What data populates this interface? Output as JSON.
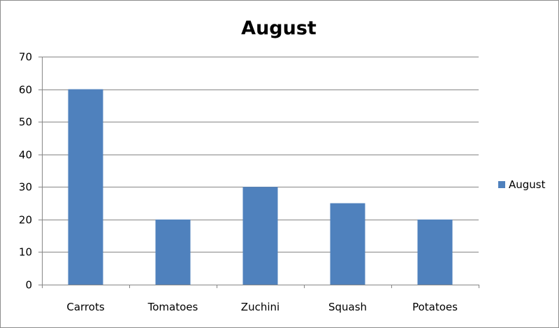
{
  "chart_data": {
    "type": "bar",
    "title": "August",
    "categories": [
      "Carrots",
      "Tomatoes",
      "Zuchini",
      "Squash",
      "Potatoes"
    ],
    "series": [
      {
        "name": "August",
        "values": [
          60,
          20,
          30,
          25,
          20
        ],
        "color": "#4f81bd"
      }
    ],
    "ylim": [
      0,
      70
    ],
    "yticks": [
      "0",
      "10",
      "20",
      "30",
      "40",
      "50",
      "60",
      "70"
    ],
    "xlabel": "",
    "ylabel": "",
    "grid": true,
    "legend_position": "right"
  }
}
